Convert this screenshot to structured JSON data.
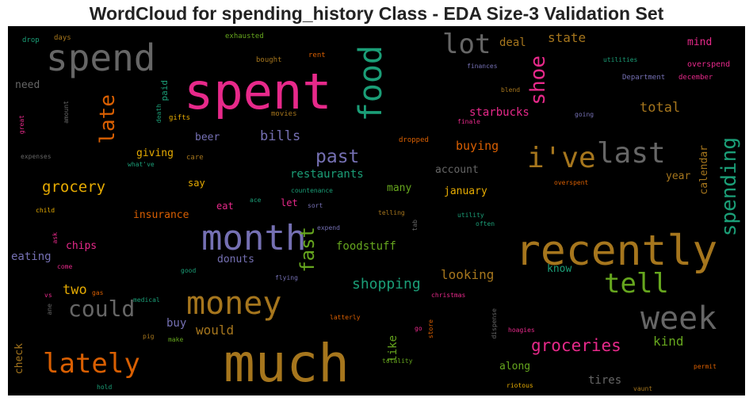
{
  "chart_data": {
    "type": "wordcloud",
    "title": "WordCloud for spending_history Class - EDA Size-3 Validation Set",
    "background": "#000000",
    "palette": [
      "#e7298a",
      "#d95f02",
      "#7570b3",
      "#1b9e77",
      "#66a61e",
      "#e6ab02",
      "#a6761d",
      "#666666"
    ],
    "words": [
      {
        "text": "much",
        "color": "#a6761d",
        "weight": 100
      },
      {
        "text": "spent",
        "color": "#e7298a",
        "weight": 96
      },
      {
        "text": "recently",
        "color": "#a6761d",
        "weight": 84
      },
      {
        "text": "spend",
        "color": "#666666",
        "weight": 70
      },
      {
        "text": "month",
        "color": "#7570b3",
        "weight": 68
      },
      {
        "text": "money",
        "color": "#a6761d",
        "weight": 66
      },
      {
        "text": "week",
        "color": "#666666",
        "weight": 64
      },
      {
        "text": "food",
        "color": "#1b9e77",
        "weight": 58
      },
      {
        "text": "i've",
        "color": "#a6761d",
        "weight": 58
      },
      {
        "text": "last",
        "color": "#666666",
        "weight": 58
      },
      {
        "text": "lately",
        "color": "#d95f02",
        "weight": 54
      },
      {
        "text": "lot",
        "color": "#666666",
        "weight": 54
      },
      {
        "text": "tell",
        "color": "#66a61e",
        "weight": 52
      },
      {
        "text": "could",
        "color": "#666666",
        "weight": 44
      },
      {
        "text": "late",
        "color": "#d95f02",
        "weight": 42
      },
      {
        "text": "shoe",
        "color": "#e7298a",
        "weight": 42
      },
      {
        "text": "spending",
        "color": "#1b9e77",
        "weight": 42
      },
      {
        "text": "fast",
        "color": "#66a61e",
        "weight": 38
      },
      {
        "text": "past",
        "color": "#7570b3",
        "weight": 36
      },
      {
        "text": "groceries",
        "color": "#e7298a",
        "weight": 34
      },
      {
        "text": "grocery",
        "color": "#e6ab02",
        "weight": 30
      },
      {
        "text": "shopping",
        "color": "#1b9e77",
        "weight": 28
      },
      {
        "text": "bills",
        "color": "#7570b3",
        "weight": 26
      },
      {
        "text": "two",
        "color": "#e6ab02",
        "weight": 26
      },
      {
        "text": "total",
        "color": "#a6761d",
        "weight": 24
      },
      {
        "text": "state",
        "color": "#a6761d",
        "weight": 24
      },
      {
        "text": "looking",
        "color": "#a6761d",
        "weight": 24
      },
      {
        "text": "kind",
        "color": "#66a61e",
        "weight": 24
      },
      {
        "text": "would",
        "color": "#a6761d",
        "weight": 24
      },
      {
        "text": "buying",
        "color": "#d95f02",
        "weight": 22
      },
      {
        "text": "restaurants",
        "color": "#1b9e77",
        "weight": 22
      },
      {
        "text": "eating",
        "color": "#7570b3",
        "weight": 22
      },
      {
        "text": "deal",
        "color": "#a6761d",
        "weight": 22
      },
      {
        "text": "like",
        "color": "#66a61e",
        "weight": 22
      },
      {
        "text": "starbucks",
        "color": "#e7298a",
        "weight": 20
      },
      {
        "text": "foodstuff",
        "color": "#66a61e",
        "weight": 20
      },
      {
        "text": "check",
        "color": "#a6761d",
        "weight": 20
      },
      {
        "text": "buy",
        "color": "#7570b3",
        "weight": 20
      },
      {
        "text": "tires",
        "color": "#666666",
        "weight": 20
      },
      {
        "text": "need",
        "color": "#666666",
        "weight": 18
      },
      {
        "text": "giving",
        "color": "#e6ab02",
        "weight": 18
      },
      {
        "text": "insurance",
        "color": "#d95f02",
        "weight": 18
      },
      {
        "text": "chips",
        "color": "#e7298a",
        "weight": 18
      },
      {
        "text": "donuts",
        "color": "#7570b3",
        "weight": 18
      },
      {
        "text": "account",
        "color": "#666666",
        "weight": 18
      },
      {
        "text": "january",
        "color": "#e6ab02",
        "weight": 18
      },
      {
        "text": "many",
        "color": "#66a61e",
        "weight": 18
      },
      {
        "text": "calendar",
        "color": "#a6761d",
        "weight": 18
      },
      {
        "text": "year",
        "color": "#a6761d",
        "weight": 18
      },
      {
        "text": "along",
        "color": "#66a61e",
        "weight": 18
      },
      {
        "text": "mind",
        "color": "#e7298a",
        "weight": 18
      },
      {
        "text": "know",
        "color": "#1b9e77",
        "weight": 18
      },
      {
        "text": "beer",
        "color": "#7570b3",
        "weight": 16
      },
      {
        "text": "say",
        "color": "#e6ab02",
        "weight": 16
      },
      {
        "text": "eat",
        "color": "#e7298a",
        "weight": 16
      },
      {
        "text": "let",
        "color": "#e7298a",
        "weight": 16
      },
      {
        "text": "paid",
        "color": "#1b9e77",
        "weight": 14
      },
      {
        "text": "overspend",
        "color": "#e7298a",
        "weight": 12
      },
      {
        "text": "Department",
        "color": "#7570b3",
        "weight": 12
      },
      {
        "text": "december",
        "color": "#e7298a",
        "weight": 12
      },
      {
        "text": "drop",
        "color": "#1b9e77",
        "weight": 11
      },
      {
        "text": "days",
        "color": "#a6761d",
        "weight": 11
      },
      {
        "text": "exhausted",
        "color": "#66a61e",
        "weight": 11
      },
      {
        "text": "bought",
        "color": "#a6761d",
        "weight": 11
      },
      {
        "text": "rent",
        "color": "#d95f02",
        "weight": 11
      },
      {
        "text": "finances",
        "color": "#7570b3",
        "weight": 11
      },
      {
        "text": "blend",
        "color": "#a6761d",
        "weight": 11
      },
      {
        "text": "utilities",
        "color": "#1b9e77",
        "weight": 11
      },
      {
        "text": "amount",
        "color": "#666666",
        "weight": 11
      },
      {
        "text": "great",
        "color": "#e7298a",
        "weight": 11
      },
      {
        "text": "death",
        "color": "#1b9e77",
        "weight": 11
      },
      {
        "text": "gifts",
        "color": "#e6ab02",
        "weight": 11
      },
      {
        "text": "movies",
        "color": "#a6761d",
        "weight": 11
      },
      {
        "text": "care",
        "color": "#a6761d",
        "weight": 11
      },
      {
        "text": "finale",
        "color": "#e7298a",
        "weight": 11
      },
      {
        "text": "going",
        "color": "#7570b3",
        "weight": 11
      },
      {
        "text": "dropped",
        "color": "#d95f02",
        "weight": 11
      },
      {
        "text": "expenses",
        "color": "#666666",
        "weight": 11
      },
      {
        "text": "what've",
        "color": "#1b9e77",
        "weight": 11
      },
      {
        "text": "countenance",
        "color": "#1b9e77",
        "weight": 11
      },
      {
        "text": "ace",
        "color": "#1b9e77",
        "weight": 11
      },
      {
        "text": "sort",
        "color": "#7570b3",
        "weight": 11
      },
      {
        "text": "child",
        "color": "#e6ab02",
        "weight": 11
      },
      {
        "text": "telling",
        "color": "#a6761d",
        "weight": 11
      },
      {
        "text": "utility",
        "color": "#1b9e77",
        "weight": 11
      },
      {
        "text": "overspent",
        "color": "#d95f02",
        "weight": 11
      },
      {
        "text": "expend",
        "color": "#7570b3",
        "weight": 11
      },
      {
        "text": "often",
        "color": "#1b9e77",
        "weight": 11
      },
      {
        "text": "ask",
        "color": "#e7298a",
        "weight": 11
      },
      {
        "text": "tab",
        "color": "#666666",
        "weight": 11
      },
      {
        "text": "come",
        "color": "#e7298a",
        "weight": 11
      },
      {
        "text": "good",
        "color": "#1b9e77",
        "weight": 11
      },
      {
        "text": "flying",
        "color": "#7570b3",
        "weight": 11
      },
      {
        "text": "vs",
        "color": "#e7298a",
        "weight": 11
      },
      {
        "text": "gas",
        "color": "#d95f02",
        "weight": 11
      },
      {
        "text": "ane",
        "color": "#666666",
        "weight": 11
      },
      {
        "text": "medical",
        "color": "#1b9e77",
        "weight": 11
      },
      {
        "text": "christmas",
        "color": "#e7298a",
        "weight": 11
      },
      {
        "text": "dispense",
        "color": "#666666",
        "weight": 11
      },
      {
        "text": "latterly",
        "color": "#d95f02",
        "weight": 11
      },
      {
        "text": "go",
        "color": "#e7298a",
        "weight": 11
      },
      {
        "text": "store",
        "color": "#d95f02",
        "weight": 11
      },
      {
        "text": "pig",
        "color": "#a6761d",
        "weight": 11
      },
      {
        "text": "make",
        "color": "#66a61e",
        "weight": 11
      },
      {
        "text": "hoagies",
        "color": "#e7298a",
        "weight": 11
      },
      {
        "text": "permit",
        "color": "#d95f02",
        "weight": 11
      },
      {
        "text": "hold",
        "color": "#1b9e77",
        "weight": 11
      },
      {
        "text": "totality",
        "color": "#66a61e",
        "weight": 11
      },
      {
        "text": "riotous",
        "color": "#e6ab02",
        "weight": 11
      },
      {
        "text": "vaunt",
        "color": "#a6761d",
        "weight": 11
      }
    ]
  }
}
